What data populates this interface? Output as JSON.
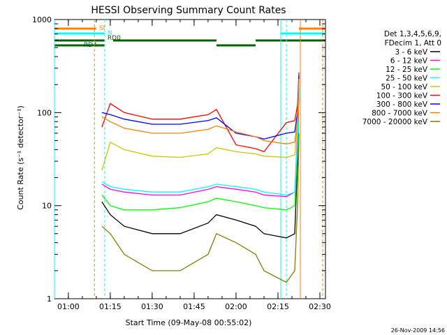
{
  "chart_data": {
    "type": "line",
    "title": "HESSI Observing Summary Count Rates",
    "xlabel": "Start Time (09-May-08 00:55:02)",
    "ylabel": "Count Rate (s⁻¹ detector⁻¹)",
    "yscale": "log",
    "ylim": [
      1,
      1000
    ],
    "xlim": [
      "00:55:02",
      "02:32:00"
    ],
    "y_tick_labels": [
      "1",
      "10",
      "100",
      "1000"
    ],
    "x_tick_labels": [
      "01:00",
      "01:15",
      "01:30",
      "01:45",
      "02:00",
      "02:15",
      "02:30"
    ],
    "grid": false,
    "legend_position": "right",
    "legend_header": [
      "Det 1,3,4,5,6,9,",
      "FDecim 1, Att 0"
    ],
    "timestamp": "26-Nov-2009 14:56",
    "series": [
      {
        "name": "3 - 6 keV",
        "color": "#000000",
        "x": [
          "01:12",
          "01:15",
          "01:20",
          "01:30",
          "01:40",
          "01:50",
          "01:53",
          "02:00",
          "02:07",
          "02:10",
          "02:18",
          "02:21",
          "02:22",
          "02:22:30"
        ],
        "y": [
          11,
          8,
          6,
          5,
          5,
          6.5,
          8,
          7,
          6,
          5,
          4.5,
          5,
          30,
          180
        ]
      },
      {
        "name": "6 - 12 keV",
        "color": "#ff00ff",
        "x": [
          "01:12",
          "01:15",
          "01:20",
          "01:30",
          "01:40",
          "01:50",
          "01:53",
          "02:00",
          "02:07",
          "02:10",
          "02:18",
          "02:21",
          "02:22",
          "02:22:30"
        ],
        "y": [
          17,
          15,
          14,
          13,
          13,
          15,
          16,
          15,
          14,
          13,
          12.5,
          14,
          60,
          240
        ]
      },
      {
        "name": "12 - 25 keV",
        "color": "#00ff00",
        "x": [
          "01:12",
          "01:15",
          "01:20",
          "01:30",
          "01:40",
          "01:50",
          "01:53",
          "02:00",
          "02:07",
          "02:10",
          "02:18",
          "02:21",
          "02:22",
          "02:22:30"
        ],
        "y": [
          13,
          10,
          9,
          9,
          9.5,
          11,
          12,
          11,
          10,
          9.5,
          9,
          10,
          40,
          200
        ]
      },
      {
        "name": "25 - 50 keV",
        "color": "#00ffff",
        "x": [
          "01:12",
          "01:15",
          "01:20",
          "01:30",
          "01:40",
          "01:50",
          "01:53",
          "02:00",
          "02:07",
          "02:10",
          "02:18",
          "02:21",
          "02:22",
          "02:22:30"
        ],
        "y": [
          18,
          16,
          15,
          14,
          14,
          16,
          17,
          16,
          15,
          14,
          13,
          14,
          50,
          220
        ]
      },
      {
        "name": "50 - 100 keV",
        "color": "#c8c800",
        "x": [
          "01:12",
          "01:15",
          "01:20",
          "01:30",
          "01:40",
          "01:50",
          "01:53",
          "02:00",
          "02:07",
          "02:10",
          "02:18",
          "02:21",
          "02:22",
          "02:22:30"
        ],
        "y": [
          24,
          48,
          40,
          34,
          33,
          36,
          42,
          38,
          36,
          34,
          33,
          35,
          80,
          250
        ]
      },
      {
        "name": "100 - 300 keV",
        "color": "#ff0000",
        "x": [
          "01:12",
          "01:15",
          "01:20",
          "01:30",
          "01:40",
          "01:50",
          "01:53",
          "02:00",
          "02:07",
          "02:10",
          "02:18",
          "02:21",
          "02:22",
          "02:22:30"
        ],
        "y": [
          70,
          125,
          100,
          85,
          85,
          95,
          108,
          45,
          41,
          38,
          78,
          82,
          120,
          270
        ]
      },
      {
        "name": "300 - 800 keV",
        "color": "#0000ff",
        "x": [
          "01:12",
          "01:15",
          "01:20",
          "01:30",
          "01:40",
          "01:50",
          "01:53",
          "02:00",
          "02:07",
          "02:10",
          "02:18",
          "02:21",
          "02:22",
          "02:22:30"
        ],
        "y": [
          100,
          95,
          85,
          75,
          75,
          82,
          88,
          60,
          55,
          52,
          60,
          62,
          100,
          250
        ]
      },
      {
        "name": "800 - 7000 keV",
        "color": "#ff8000",
        "x": [
          "01:12",
          "01:15",
          "01:20",
          "01:30",
          "01:40",
          "01:50",
          "01:53",
          "02:00",
          "02:07",
          "02:10",
          "02:18",
          "02:21",
          "02:22",
          "02:22:30"
        ],
        "y": [
          90,
          80,
          68,
          60,
          60,
          66,
          72,
          62,
          55,
          50,
          46,
          48,
          85,
          230
        ]
      },
      {
        "name": "7000 - 20000 keV",
        "color": "#808000",
        "x": [
          "01:12",
          "01:15",
          "01:20",
          "01:30",
          "01:40",
          "01:50",
          "01:53",
          "02:00",
          "02:07",
          "02:10",
          "02:18",
          "02:21",
          "02:22",
          "02:22:30"
        ],
        "y": [
          6,
          5,
          3,
          2,
          2,
          3,
          5,
          4,
          3,
          2,
          1.5,
          2,
          10,
          60
        ]
      }
    ],
    "annotations": [
      {
        "label": "SI",
        "color": "#ff8000",
        "segments": [
          [
            "00:55:02",
            "01:10"
          ],
          [
            "02:22:30",
            "02:32:00"
          ]
        ],
        "level": 1
      },
      {
        "label": "N",
        "color": "#00ffff",
        "segments": [
          [
            "00:55:02",
            "01:13"
          ],
          [
            "02:16",
            "02:32:00"
          ]
        ],
        "level": 2
      },
      {
        "label": "RD0",
        "color": "#006400",
        "segments": [
          [
            "00:55:02",
            "01:13"
          ],
          [
            "01:16",
            "01:53"
          ],
          [
            "02:07",
            "02:32:00"
          ]
        ],
        "level": 3
      },
      {
        "label": "RD4",
        "color": "#006400",
        "segments": [
          [
            "00:55:02",
            "01:13"
          ],
          [
            "01:53",
            "02:07"
          ]
        ],
        "level": 4
      }
    ],
    "vertical_lines": [
      {
        "x": "00:55:02",
        "color": "#00ffff",
        "style": "solid"
      },
      {
        "x": "01:09:20",
        "color": "#ff8000",
        "style": "dashed"
      },
      {
        "x": "01:13",
        "color": "#00ffff",
        "style": "dashed"
      },
      {
        "x": "02:16",
        "color": "#00ffff",
        "style": "solid"
      },
      {
        "x": "02:18",
        "color": "#00ffff",
        "style": "dashed"
      },
      {
        "x": "02:23",
        "color": "#ff8000",
        "style": "solid"
      },
      {
        "x": "02:31",
        "color": "#ff8000",
        "style": "dashed"
      }
    ]
  }
}
